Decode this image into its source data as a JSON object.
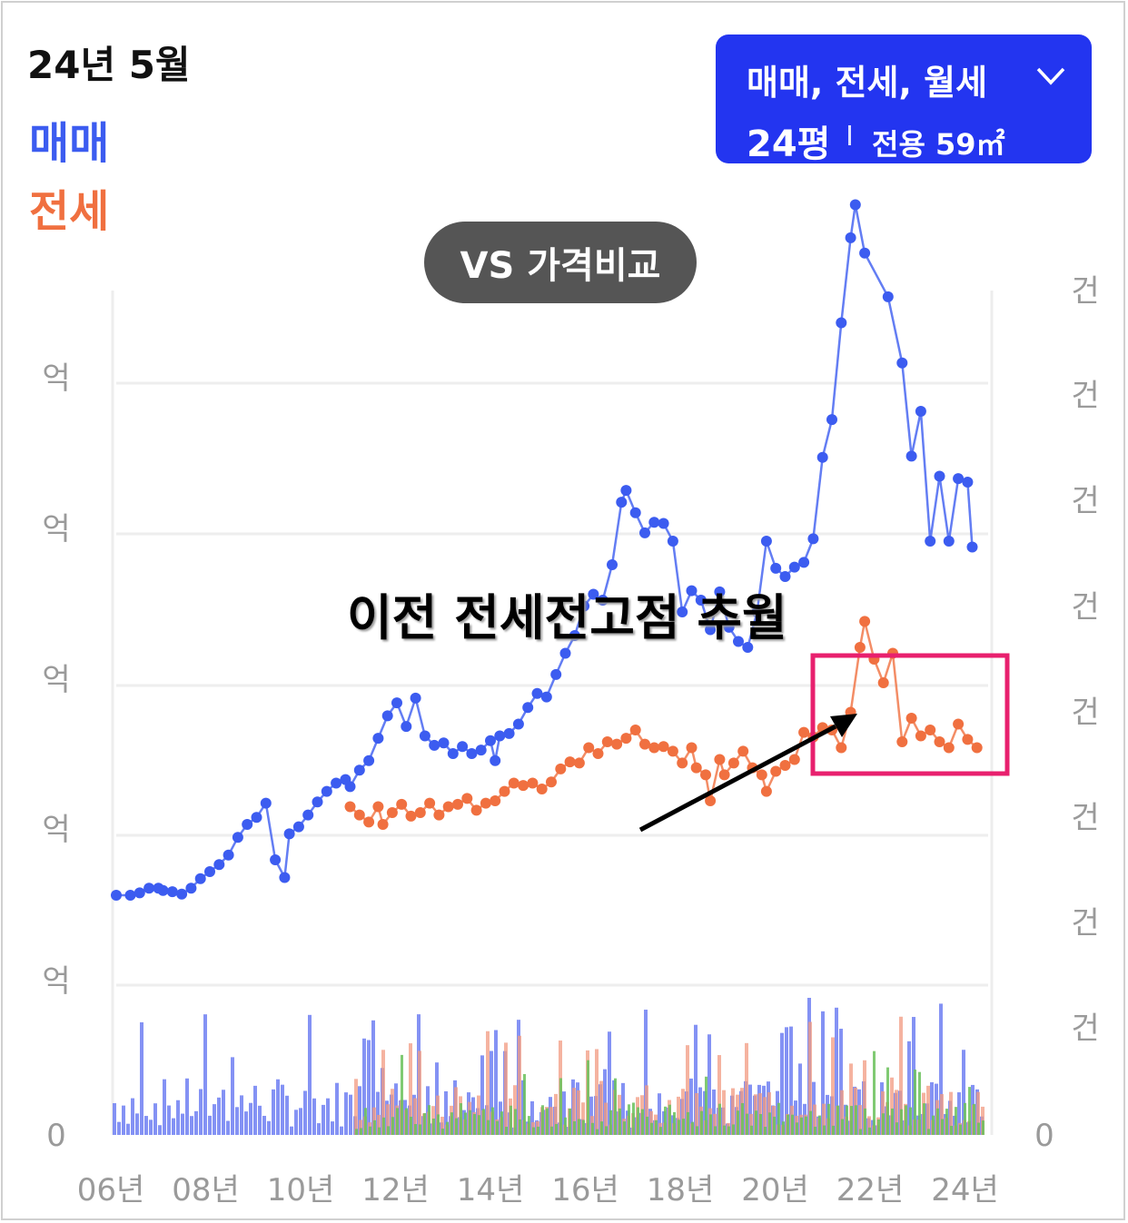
{
  "header": {
    "date": "24년 5월"
  },
  "legend": [
    {
      "label": "매매",
      "color": "#3c5cf0"
    },
    {
      "label": "전세",
      "color": "#f07040"
    }
  ],
  "filter": {
    "types": "매매, 전세, 월세",
    "pyeong": "24평",
    "area": "전용 59㎡",
    "icon": "chevron-down-icon"
  },
  "compare_button": "VS 가격비교",
  "annotation": {
    "text": "이전 전세전고점 추월",
    "box_color": "#e8206e",
    "arrow_color": "#000000"
  },
  "chart_data": {
    "type": "line",
    "x_ticks": [
      "06년",
      "08년",
      "10년",
      "12년",
      "14년",
      "16년",
      "18년",
      "20년",
      "22년",
      "24년"
    ],
    "y_tick_labels": [
      "0",
      "억",
      "억",
      "억",
      "억",
      "억"
    ],
    "y2_tick_labels": [
      "0",
      "건",
      "건",
      "건",
      "건",
      "건",
      "건",
      "건",
      "건"
    ],
    "xlim": [
      2006.0,
      2024.6
    ],
    "grid": true,
    "series": [
      {
        "name": "매매",
        "color": "#3c5cf0",
        "points": [
          [
            2006.0,
            0.8
          ],
          [
            2006.3,
            0.8
          ],
          [
            2006.5,
            0.82
          ],
          [
            2006.7,
            0.86
          ],
          [
            2006.9,
            0.86
          ],
          [
            2007.0,
            0.84
          ],
          [
            2007.2,
            0.83
          ],
          [
            2007.4,
            0.81
          ],
          [
            2007.6,
            0.86
          ],
          [
            2007.8,
            0.94
          ],
          [
            2008.0,
            1.0
          ],
          [
            2008.2,
            1.06
          ],
          [
            2008.4,
            1.14
          ],
          [
            2008.6,
            1.29
          ],
          [
            2008.8,
            1.4
          ],
          [
            2009.0,
            1.46
          ],
          [
            2009.2,
            1.58
          ],
          [
            2009.4,
            1.1
          ],
          [
            2009.6,
            0.95
          ],
          [
            2009.7,
            1.32
          ],
          [
            2009.9,
            1.38
          ],
          [
            2010.1,
            1.48
          ],
          [
            2010.3,
            1.59
          ],
          [
            2010.5,
            1.68
          ],
          [
            2010.7,
            1.75
          ],
          [
            2010.9,
            1.78
          ],
          [
            2011.0,
            1.72
          ],
          [
            2011.2,
            1.86
          ],
          [
            2011.4,
            1.94
          ],
          [
            2011.6,
            2.13
          ],
          [
            2011.8,
            2.32
          ],
          [
            2012.0,
            2.43
          ],
          [
            2012.2,
            2.23
          ],
          [
            2012.4,
            2.47
          ],
          [
            2012.6,
            2.15
          ],
          [
            2012.8,
            2.07
          ],
          [
            2013.0,
            2.09
          ],
          [
            2013.2,
            2.0
          ],
          [
            2013.4,
            2.06
          ],
          [
            2013.6,
            2.0
          ],
          [
            2013.8,
            2.03
          ],
          [
            2014.0,
            2.11
          ],
          [
            2014.1,
            1.94
          ],
          [
            2014.2,
            2.15
          ],
          [
            2014.4,
            2.17
          ],
          [
            2014.6,
            2.25
          ],
          [
            2014.8,
            2.39
          ],
          [
            2015.0,
            2.51
          ],
          [
            2015.2,
            2.48
          ],
          [
            2015.4,
            2.67
          ],
          [
            2015.6,
            2.85
          ],
          [
            2015.8,
            3.0
          ],
          [
            2016.0,
            3.25
          ],
          [
            2016.2,
            3.35
          ],
          [
            2016.4,
            3.3
          ],
          [
            2016.6,
            3.6
          ],
          [
            2016.8,
            4.13
          ],
          [
            2016.9,
            4.23
          ],
          [
            2017.1,
            4.04
          ],
          [
            2017.3,
            3.87
          ],
          [
            2017.5,
            3.96
          ],
          [
            2017.7,
            3.95
          ],
          [
            2017.9,
            3.8
          ],
          [
            2018.1,
            3.2
          ],
          [
            2018.3,
            3.38
          ],
          [
            2018.5,
            3.3
          ],
          [
            2018.7,
            3.05
          ],
          [
            2018.9,
            3.37
          ],
          [
            2019.1,
            3.07
          ],
          [
            2019.3,
            2.95
          ],
          [
            2019.5,
            2.9
          ],
          [
            2019.7,
            3.2
          ],
          [
            2019.9,
            3.8
          ],
          [
            2020.1,
            3.57
          ],
          [
            2020.3,
            3.5
          ],
          [
            2020.5,
            3.58
          ],
          [
            2020.7,
            3.62
          ],
          [
            2020.9,
            3.82
          ],
          [
            2021.1,
            4.51
          ],
          [
            2021.3,
            4.83
          ],
          [
            2021.5,
            5.65
          ],
          [
            2021.7,
            6.37
          ],
          [
            2021.8,
            6.65
          ],
          [
            2022.0,
            6.24
          ],
          [
            2022.5,
            5.87
          ],
          [
            2022.8,
            5.31
          ],
          [
            2023.0,
            4.52
          ],
          [
            2023.2,
            4.9
          ],
          [
            2023.4,
            3.8
          ],
          [
            2023.6,
            4.35
          ],
          [
            2023.8,
            3.8
          ],
          [
            2024.0,
            4.33
          ],
          [
            2024.2,
            4.3
          ],
          [
            2024.3,
            3.75
          ]
        ]
      },
      {
        "name": "전세",
        "color": "#f07040",
        "points": [
          [
            2011.0,
            1.55
          ],
          [
            2011.2,
            1.48
          ],
          [
            2011.4,
            1.42
          ],
          [
            2011.6,
            1.55
          ],
          [
            2011.7,
            1.4
          ],
          [
            2011.9,
            1.5
          ],
          [
            2012.1,
            1.57
          ],
          [
            2012.3,
            1.47
          ],
          [
            2012.5,
            1.5
          ],
          [
            2012.7,
            1.58
          ],
          [
            2012.9,
            1.48
          ],
          [
            2013.1,
            1.55
          ],
          [
            2013.3,
            1.57
          ],
          [
            2013.5,
            1.62
          ],
          [
            2013.7,
            1.52
          ],
          [
            2013.9,
            1.58
          ],
          [
            2014.1,
            1.6
          ],
          [
            2014.3,
            1.68
          ],
          [
            2014.5,
            1.75
          ],
          [
            2014.7,
            1.73
          ],
          [
            2014.9,
            1.75
          ],
          [
            2015.1,
            1.7
          ],
          [
            2015.3,
            1.76
          ],
          [
            2015.5,
            1.87
          ],
          [
            2015.7,
            1.93
          ],
          [
            2015.9,
            1.92
          ],
          [
            2016.1,
            2.05
          ],
          [
            2016.3,
            2.0
          ],
          [
            2016.5,
            2.1
          ],
          [
            2016.7,
            2.08
          ],
          [
            2016.9,
            2.13
          ],
          [
            2017.1,
            2.2
          ],
          [
            2017.3,
            2.08
          ],
          [
            2017.5,
            2.05
          ],
          [
            2017.7,
            2.06
          ],
          [
            2017.9,
            2.02
          ],
          [
            2018.1,
            1.92
          ],
          [
            2018.3,
            2.05
          ],
          [
            2018.4,
            1.88
          ],
          [
            2018.6,
            1.82
          ],
          [
            2018.7,
            1.6
          ],
          [
            2018.9,
            1.95
          ],
          [
            2019.0,
            1.82
          ],
          [
            2019.2,
            1.92
          ],
          [
            2019.4,
            2.02
          ],
          [
            2019.6,
            1.88
          ],
          [
            2019.8,
            1.82
          ],
          [
            2019.9,
            1.68
          ],
          [
            2020.1,
            1.85
          ],
          [
            2020.3,
            1.9
          ],
          [
            2020.5,
            1.95
          ],
          [
            2020.7,
            2.18
          ],
          [
            2020.9,
            2.14
          ],
          [
            2021.1,
            2.22
          ],
          [
            2021.3,
            2.2
          ],
          [
            2021.5,
            2.05
          ],
          [
            2021.7,
            2.35
          ],
          [
            2021.9,
            2.9
          ],
          [
            2022.0,
            3.12
          ],
          [
            2022.2,
            2.8
          ],
          [
            2022.4,
            2.6
          ],
          [
            2022.6,
            2.85
          ],
          [
            2022.8,
            2.1
          ],
          [
            2023.0,
            2.3
          ],
          [
            2023.2,
            2.15
          ],
          [
            2023.4,
            2.2
          ],
          [
            2023.6,
            2.1
          ],
          [
            2023.8,
            2.05
          ],
          [
            2024.0,
            2.25
          ],
          [
            2024.2,
            2.12
          ],
          [
            2024.4,
            2.05
          ]
        ]
      }
    ],
    "volume_series": [
      {
        "name": "매매 거래량",
        "color": "#6f7ff2"
      },
      {
        "name": "전세 거래량",
        "color": "#f29a80"
      },
      {
        "name": "월세 거래량",
        "color": "#6ac15b"
      }
    ]
  }
}
